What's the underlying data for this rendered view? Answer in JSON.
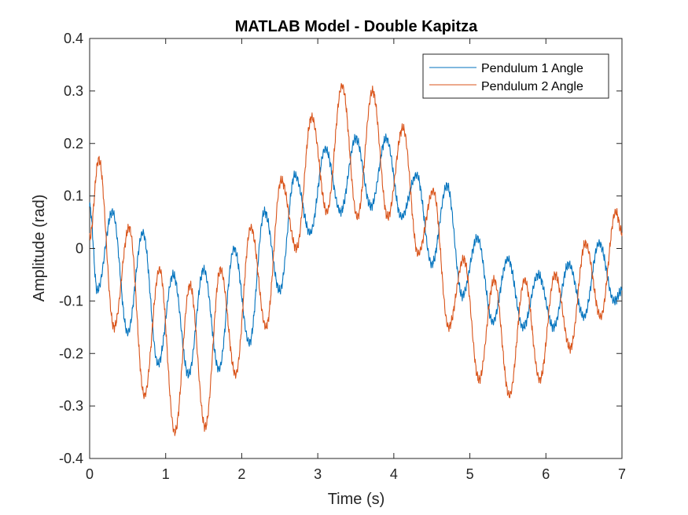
{
  "chart_data": {
    "type": "line",
    "title": "MATLAB Model - Double Kapitza",
    "xlabel": "Time (s)",
    "ylabel": "Amplitude (rad)",
    "xlim": [
      0,
      7
    ],
    "ylim": [
      -0.4,
      0.4
    ],
    "grid": false,
    "legend_position": "top-right",
    "x_ticks": [
      "0",
      "1",
      "2",
      "3",
      "4",
      "5",
      "6",
      "7"
    ],
    "y_ticks": [
      "-0.4",
      "-0.3",
      "-0.2",
      "-0.1",
      "0",
      "0.1",
      "0.2",
      "0.3",
      "0.4"
    ],
    "series": [
      {
        "name": "Pendulum 1 Angle",
        "color": "#0072BD",
        "x": [
          0,
          0.1,
          0.3,
          0.5,
          0.7,
          0.9,
          1.1,
          1.3,
          1.5,
          1.7,
          1.9,
          2.1,
          2.3,
          2.5,
          2.7,
          2.9,
          3.1,
          3.3,
          3.5,
          3.7,
          3.9,
          4.1,
          4.3,
          4.5,
          4.7,
          4.9,
          5.1,
          5.3,
          5.5,
          5.7,
          5.9,
          6.1,
          6.3,
          6.5,
          6.7,
          6.9,
          7.0
        ],
        "values": [
          0.08,
          -0.08,
          0.07,
          -0.16,
          0.03,
          -0.22,
          -0.05,
          -0.24,
          -0.04,
          -0.23,
          0.0,
          -0.18,
          0.07,
          -0.08,
          0.14,
          0.03,
          0.19,
          0.07,
          0.21,
          0.08,
          0.21,
          0.06,
          0.14,
          -0.03,
          0.12,
          -0.09,
          0.02,
          -0.14,
          -0.02,
          -0.15,
          -0.05,
          -0.15,
          -0.03,
          -0.13,
          0.01,
          -0.1,
          -0.08
        ]
      },
      {
        "name": "Pendulum 2 Angle",
        "color": "#D95319",
        "x": [
          0,
          0.12,
          0.32,
          0.52,
          0.72,
          0.92,
          1.12,
          1.32,
          1.52,
          1.72,
          1.92,
          2.12,
          2.32,
          2.52,
          2.72,
          2.92,
          3.12,
          3.32,
          3.52,
          3.72,
          3.92,
          4.12,
          4.32,
          4.52,
          4.72,
          4.92,
          5.12,
          5.32,
          5.52,
          5.72,
          5.92,
          6.12,
          6.32,
          6.52,
          6.72,
          6.92,
          7.0
        ],
        "values": [
          0.02,
          0.17,
          -0.15,
          0.04,
          -0.28,
          -0.04,
          -0.35,
          -0.07,
          -0.34,
          -0.04,
          -0.24,
          0.04,
          -0.15,
          0.13,
          0.0,
          0.25,
          0.07,
          0.31,
          0.06,
          0.3,
          0.06,
          0.23,
          -0.01,
          0.11,
          -0.15,
          -0.02,
          -0.25,
          -0.06,
          -0.28,
          -0.06,
          -0.25,
          -0.05,
          -0.19,
          0.01,
          -0.13,
          0.07,
          0.03
        ]
      }
    ]
  }
}
